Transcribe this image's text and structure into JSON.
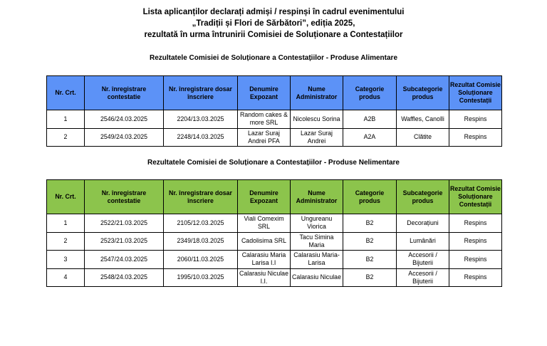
{
  "title": [
    "Lista aplicanților declarați admiși / respinși în cadrul evenimentului",
    "„Tradiții și Flori de Sărbători”, ediția 2025,",
    "rezultată în urma întrunirii Comisiei de Soluționare a Contestațiilor"
  ],
  "colors": {
    "header_alimentare": "#5c92f7",
    "header_nealimentare": "#8cc44c"
  },
  "headers": [
    "Nr. Crt.",
    "Nr. înregistrare contestatie",
    "Nr. înregistrare dosar înscriere",
    "Denumire Expozant",
    "Nume Administrator",
    "Categorie produs",
    "Subcategorie produs",
    "Rezultat Comisie Soluționare Contestații"
  ],
  "tables": [
    {
      "subtitle": "Rezultatele Comisiei de Soluționare a Contestațiilor - Produse Alimentare",
      "rows": [
        [
          "1",
          "2546/24.03.2025",
          "2204/13.03.2025",
          "Random cakes & more SRL",
          "Nicolescu Sorina",
          "A2B",
          "Waffles, Canolli",
          "Respins"
        ],
        [
          "2",
          "2549/24.03.2025",
          "2248/14.03.2025",
          "Lazar Suraj Andrei PFA",
          "Lazar Suraj Andrei",
          "A2A",
          "Clătite",
          "Respins"
        ]
      ]
    },
    {
      "subtitle": "Rezultatele Comisiei de Soluționare a Contestațiilor - Produse Nelimentare",
      "rows": [
        [
          "1",
          "2522/21.03.2025",
          "2105/12.03.2025",
          "Viali Comexim SRL",
          "Ungureanu Viorica",
          "B2",
          "Decorațiuni",
          "Respins"
        ],
        [
          "2",
          "2523/21.03.2025",
          "2349/18.03.2025",
          "Cadolisima SRL",
          "Tacu Simina Maria",
          "B2",
          "Lumânări",
          "Respins"
        ],
        [
          "3",
          "2547/24.03.2025",
          "2060/11.03.2025",
          "Calarasiu Maria Larisa I.I",
          "Calarasiu Maria-Larisa",
          "B2",
          "Accesorii / Bijuterii",
          "Respins"
        ],
        [
          "4",
          "2548/24.03.2025",
          "1995/10.03.2025",
          "Calarasiu Niculae I.I.",
          "Calarasiu Niculae",
          "B2",
          "Accesorii / Bijuterii",
          "Respins"
        ]
      ]
    }
  ]
}
